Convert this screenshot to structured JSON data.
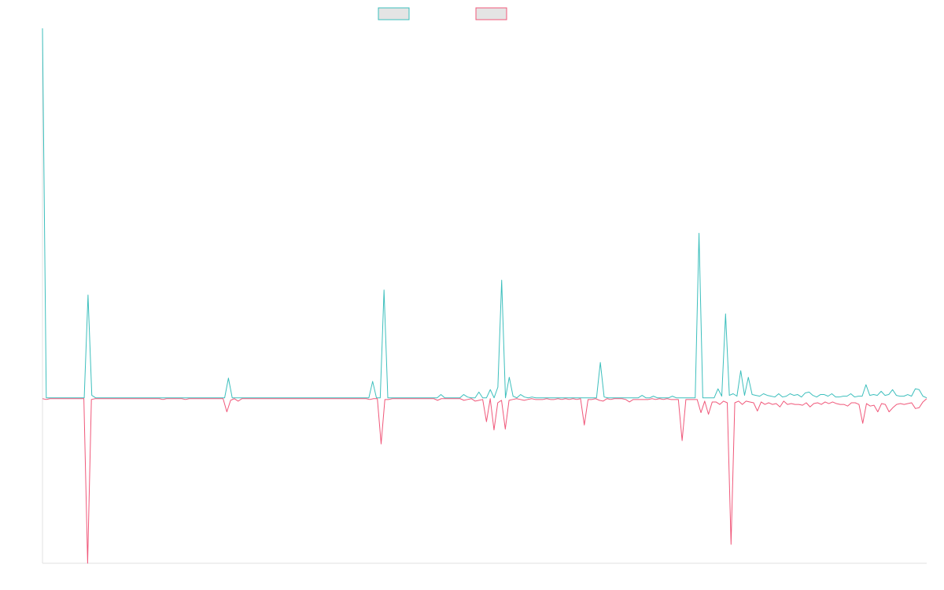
{
  "chart_data": {
    "type": "line",
    "title": "",
    "xlabel": "",
    "ylabel": "",
    "grid": false,
    "legend_position": "top-center",
    "ylim": [
      -200,
      450
    ],
    "colors": {
      "series_a": "#3dbfbd",
      "series_b": "#f0587a",
      "legend_fill": "#e4e4e4",
      "axis": "#e2e2e2"
    },
    "series": [
      {
        "values": [
          450,
          1,
          1,
          1,
          1,
          1,
          1,
          1,
          1,
          1,
          1,
          1,
          126,
          4,
          1,
          1,
          1,
          1,
          1,
          1,
          1,
          1,
          1,
          1,
          1,
          1,
          1,
          1,
          1,
          1,
          1,
          1,
          1,
          1,
          1,
          1,
          1,
          1,
          1,
          1,
          1,
          1,
          1,
          1,
          1,
          1,
          1,
          1,
          1,
          25,
          1,
          1,
          1,
          1,
          1,
          1,
          1,
          1,
          1,
          1,
          1,
          1,
          1,
          1,
          1,
          1,
          1,
          1,
          1,
          1,
          1,
          1,
          1,
          1,
          1,
          1,
          1,
          1,
          1,
          1,
          1,
          1,
          1,
          1,
          1,
          1,
          1,
          21,
          1,
          1,
          132,
          1,
          1,
          1,
          1,
          1,
          1,
          1,
          1,
          1,
          1,
          1,
          1,
          1,
          1,
          5,
          1,
          1,
          1,
          1,
          1,
          5,
          2,
          1,
          1,
          8,
          1,
          1,
          11,
          1,
          14,
          144,
          1,
          26,
          3,
          1,
          5,
          2,
          1,
          2,
          1,
          1,
          1,
          1,
          1,
          1,
          1,
          1,
          1,
          1,
          1,
          1,
          1,
          1,
          1,
          1,
          1,
          44,
          2,
          1,
          1,
          1,
          1,
          1,
          1,
          1,
          1,
          1,
          4,
          1,
          1,
          3,
          1,
          1,
          1,
          1,
          3,
          1,
          1,
          1,
          1,
          1,
          1,
          201,
          1,
          1,
          1,
          1,
          12,
          3,
          103,
          4,
          6,
          3,
          34,
          4,
          26,
          5,
          4,
          3,
          6,
          4,
          3,
          2,
          6,
          2,
          3,
          6,
          4,
          5,
          2,
          7,
          8,
          4,
          2,
          5,
          5,
          3,
          6,
          2,
          2,
          3,
          3,
          6,
          2,
          3,
          3,
          17,
          4,
          5,
          4,
          9,
          4,
          5,
          11,
          4,
          3,
          3,
          5,
          3,
          12,
          11,
          3,
          1
        ]
      },
      {
        "values": [
          0,
          -1,
          0,
          0,
          0,
          0,
          0,
          0,
          0,
          0,
          0,
          0,
          -200,
          -1,
          0,
          0,
          0,
          0,
          0,
          0,
          0,
          0,
          0,
          0,
          0,
          0,
          0,
          0,
          0,
          0,
          0,
          0,
          -1,
          0,
          0,
          0,
          0,
          0,
          -1,
          0,
          0,
          0,
          0,
          0,
          0,
          0,
          0,
          0,
          0,
          -16,
          -2,
          0,
          -3,
          0,
          0,
          0,
          0,
          0,
          0,
          0,
          0,
          0,
          0,
          0,
          0,
          0,
          0,
          0,
          0,
          0,
          0,
          0,
          0,
          0,
          0,
          0,
          0,
          0,
          0,
          0,
          0,
          0,
          0,
          0,
          0,
          0,
          0,
          -1,
          0,
          0,
          -55,
          -1,
          -1,
          0,
          0,
          0,
          0,
          0,
          0,
          0,
          0,
          0,
          0,
          0,
          0,
          -2,
          0,
          0,
          0,
          0,
          0,
          0,
          -2,
          -1,
          0,
          -3,
          -2,
          -1,
          -28,
          0,
          -38,
          -5,
          -2,
          -37,
          -2,
          -1,
          0,
          -1,
          -2,
          -1,
          0,
          -1,
          -1,
          -1,
          0,
          -1,
          -1,
          0,
          -1,
          0,
          -1,
          0,
          -1,
          0,
          -32,
          -1,
          -1,
          0,
          -2,
          -3,
          0,
          -1,
          0,
          0,
          0,
          -1,
          -4,
          -1,
          -1,
          -1,
          -1,
          -1,
          0,
          -1,
          0,
          -1,
          0,
          -1,
          -1,
          -1,
          -51,
          -1,
          -1,
          -1,
          -1,
          -17,
          -3,
          -19,
          -4,
          -4,
          -7,
          -3,
          -5,
          -177,
          -5,
          -3,
          -7,
          -3,
          -4,
          -5,
          -15,
          -4,
          -7,
          -5,
          -7,
          -6,
          -10,
          -3,
          -7,
          -6,
          -7,
          -7,
          -8,
          -5,
          -10,
          -6,
          -5,
          -7,
          -4,
          -6,
          -4,
          -6,
          -7,
          -7,
          -9,
          -5,
          -5,
          -7,
          -30,
          -6,
          -9,
          -8,
          -16,
          -6,
          -7,
          -16,
          -11,
          -7,
          -6,
          -7,
          -6,
          -5,
          -12,
          -11,
          -4,
          0
        ]
      }
    ]
  }
}
